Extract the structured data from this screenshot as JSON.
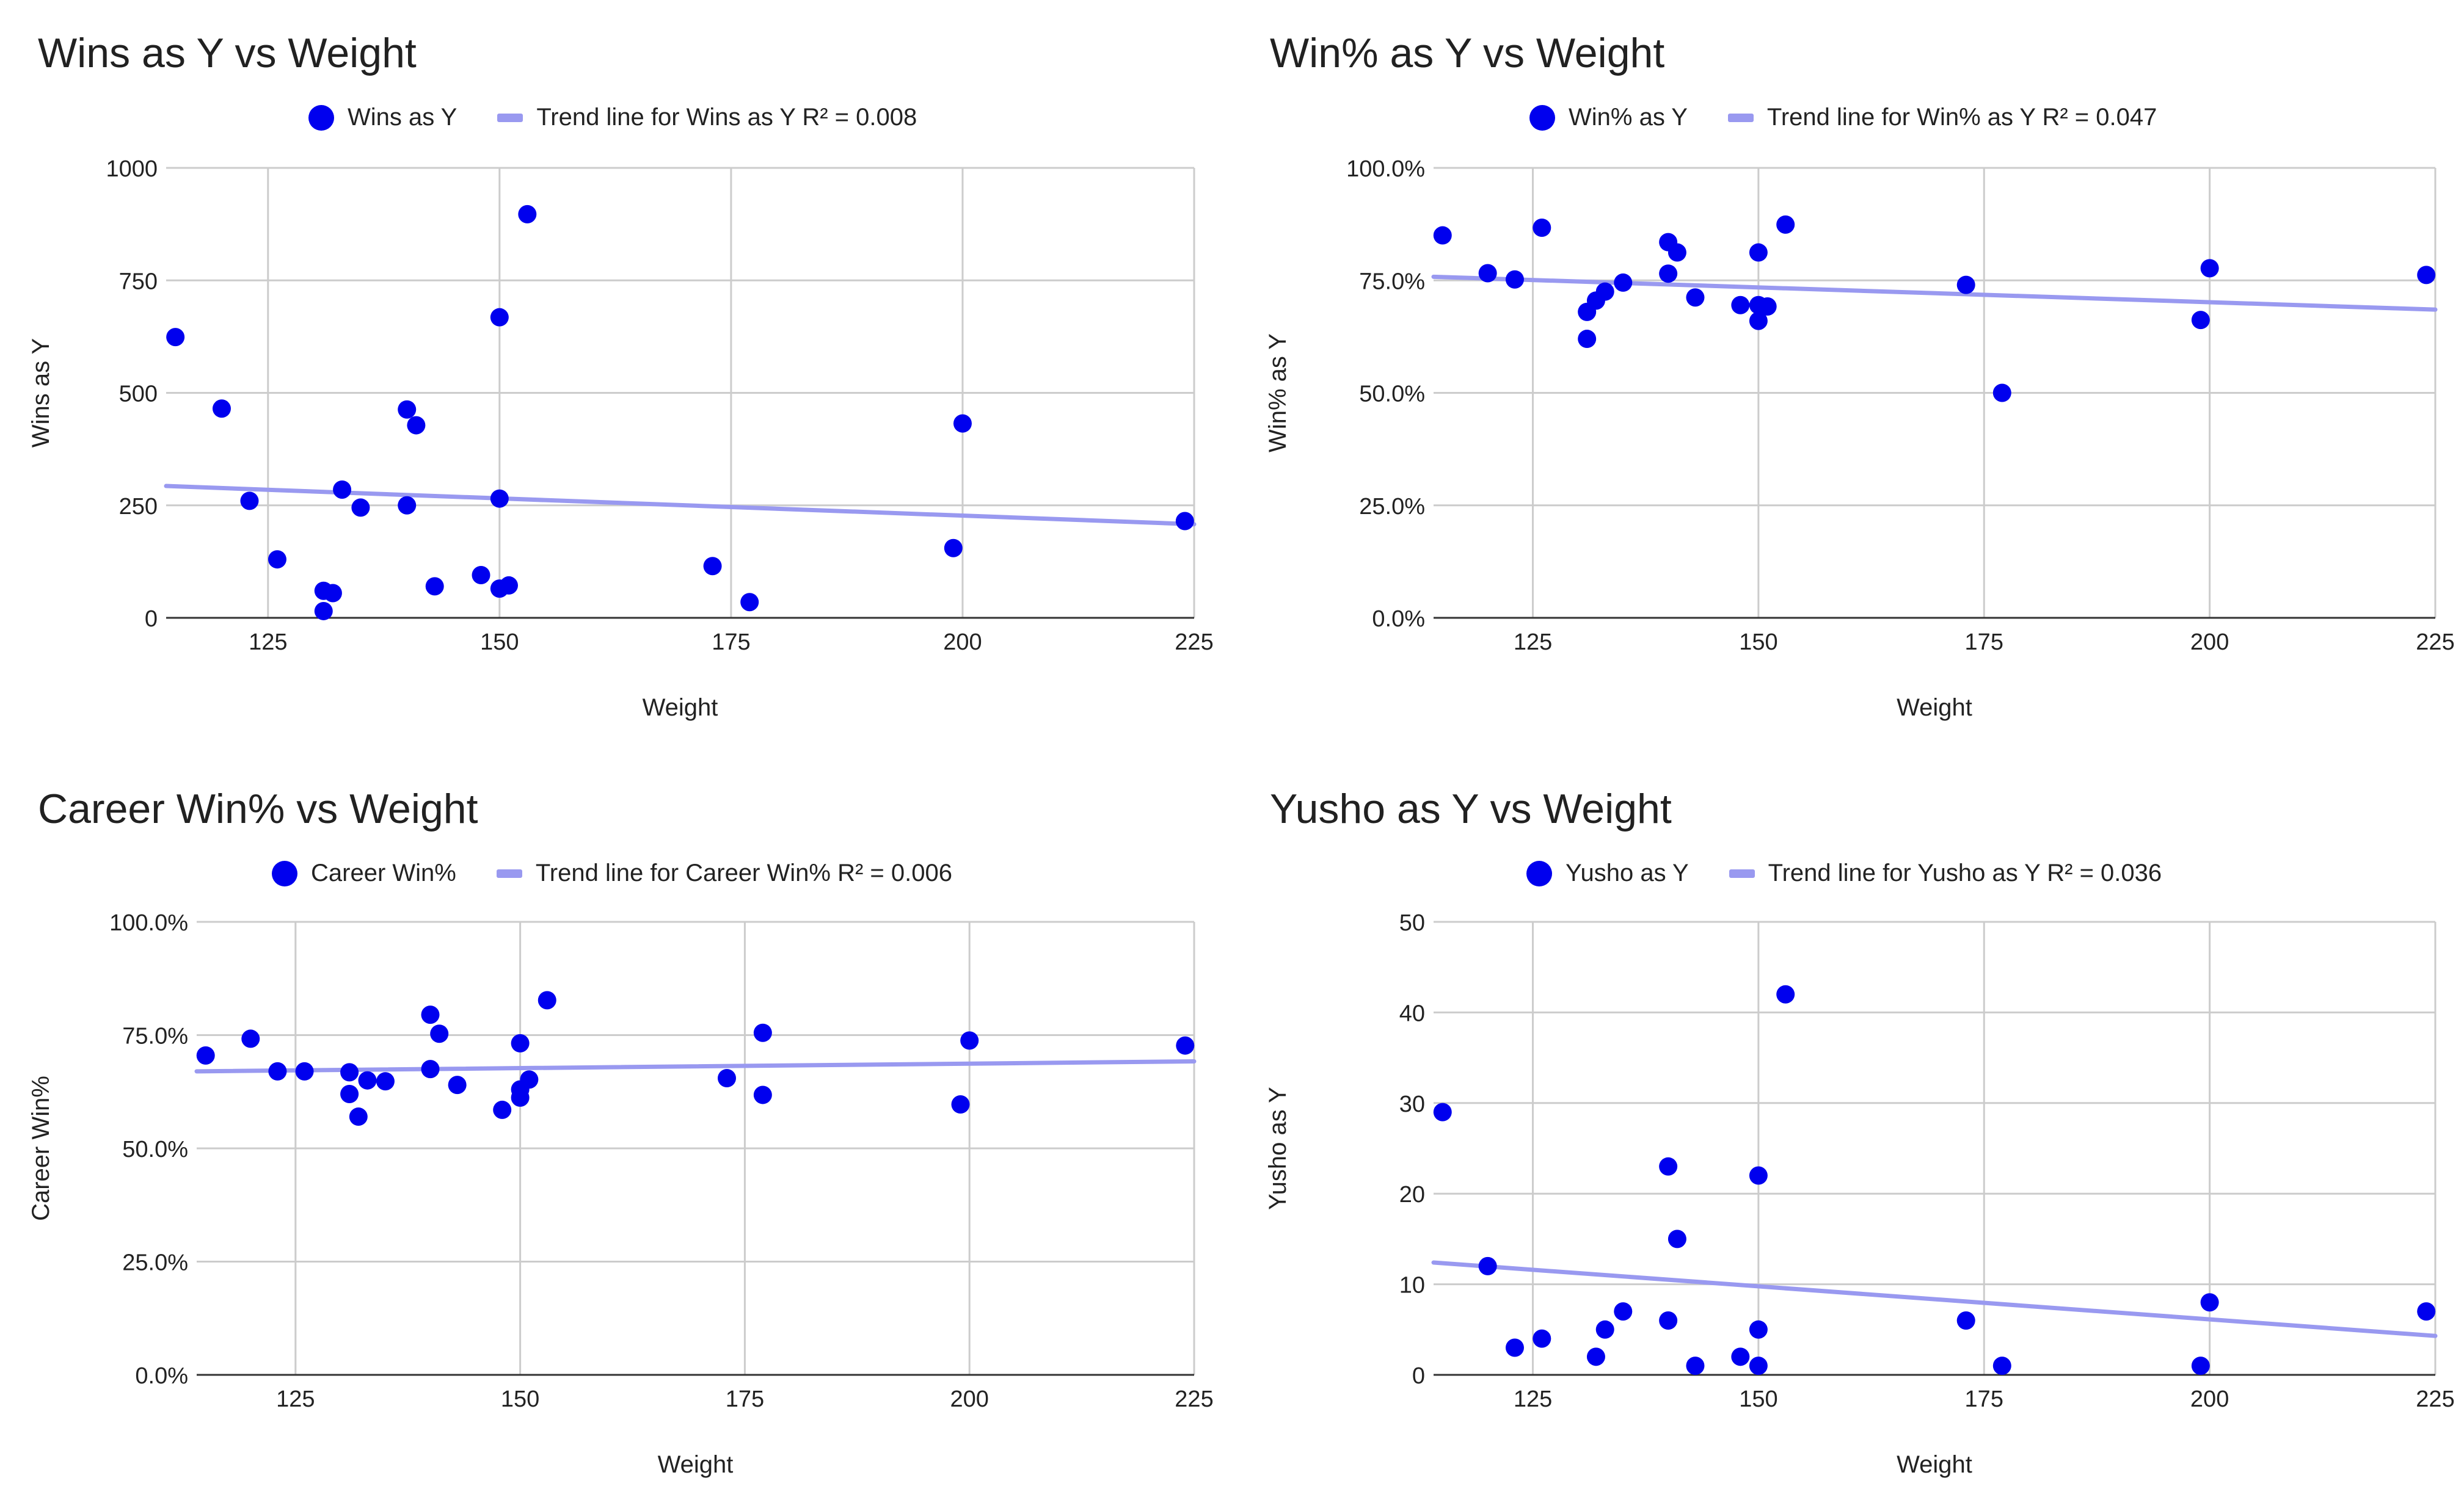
{
  "colors": {
    "points": "#0000ee",
    "trend": "#9999f0",
    "grid": "#cccccc",
    "axis": "#333333",
    "text": "#222222"
  },
  "chart_data": [
    {
      "type": "scatter",
      "title": "Wins as Y vs Weight",
      "xlabel": "Weight",
      "ylabel": "Wins as Y",
      "xlim": [
        114,
        225
      ],
      "ylim": [
        0,
        1000
      ],
      "xticks": [
        125,
        150,
        175,
        200,
        225
      ],
      "xtick_labels": [
        "125",
        "150",
        "175",
        "200",
        "225"
      ],
      "yticks": [
        0,
        250,
        500,
        750,
        1000
      ],
      "ytick_labels": [
        "0",
        "250",
        "500",
        "750",
        "1000"
      ],
      "grid": true,
      "legend_position": "top",
      "legend": {
        "points": "Wins as Y",
        "trend": "Trend line for Wins as Y R² = 0.008"
      },
      "series": [
        {
          "name": "Wins as Y",
          "points": [
            [
              115,
              624
            ],
            [
              120,
              465
            ],
            [
              123,
              260
            ],
            [
              126,
              130
            ],
            [
              131,
              60
            ],
            [
              131,
              15
            ],
            [
              132,
              55
            ],
            [
              133,
              285
            ],
            [
              135,
              245
            ],
            [
              140,
              250
            ],
            [
              140,
              463
            ],
            [
              141,
              428
            ],
            [
              143,
              70
            ],
            [
              148,
              95
            ],
            [
              150,
              668
            ],
            [
              150,
              265
            ],
            [
              150,
              65
            ],
            [
              151,
              72
            ],
            [
              153,
              897
            ],
            [
              173,
              115
            ],
            [
              177,
              35
            ],
            [
              199,
              155
            ],
            [
              200,
              432
            ],
            [
              224,
              215
            ]
          ]
        }
      ],
      "trend": [
        [
          114,
          293
        ],
        [
          225,
          208
        ]
      ]
    },
    {
      "type": "scatter",
      "title": "Win% as Y vs Weight",
      "xlabel": "Weight",
      "ylabel": "Win% as Y",
      "xlim": [
        114,
        225
      ],
      "ylim": [
        0,
        1
      ],
      "xticks": [
        125,
        150,
        175,
        200,
        225
      ],
      "xtick_labels": [
        "125",
        "150",
        "175",
        "200",
        "225"
      ],
      "yticks": [
        0,
        0.25,
        0.5,
        0.75,
        1
      ],
      "ytick_labels": [
        "0.0%",
        "25.0%",
        "50.0%",
        "75.0%",
        "100.0%"
      ],
      "grid": true,
      "legend_position": "top",
      "legend": {
        "points": "Win% as Y",
        "trend": "Trend line for Win% as Y R² = 0.047"
      },
      "series": [
        {
          "name": "Win% as Y",
          "points": [
            [
              115,
              0.85
            ],
            [
              120,
              0.766
            ],
            [
              123,
              0.752
            ],
            [
              126,
              0.867
            ],
            [
              131,
              0.68
            ],
            [
              131,
              0.62
            ],
            [
              132,
              0.705
            ],
            [
              133,
              0.725
            ],
            [
              135,
              0.745
            ],
            [
              140,
              0.765
            ],
            [
              140,
              0.835
            ],
            [
              141,
              0.812
            ],
            [
              143,
              0.712
            ],
            [
              148,
              0.695
            ],
            [
              150,
              0.812
            ],
            [
              150,
              0.695
            ],
            [
              150,
              0.66
            ],
            [
              151,
              0.692
            ],
            [
              153,
              0.874
            ],
            [
              173,
              0.74
            ],
            [
              177,
              0.5
            ],
            [
              199,
              0.662
            ],
            [
              200,
              0.777
            ],
            [
              224,
              0.762
            ]
          ]
        }
      ],
      "trend": [
        [
          114,
          0.758
        ],
        [
          225,
          0.685
        ]
      ]
    },
    {
      "type": "scatter",
      "title": "Career Win% vs Weight",
      "xlabel": "Weight",
      "ylabel": "Career Win%",
      "xlim": [
        114,
        225
      ],
      "ylim": [
        0,
        1
      ],
      "xticks": [
        125,
        150,
        175,
        200,
        225
      ],
      "xtick_labels": [
        "125",
        "150",
        "175",
        "200",
        "225"
      ],
      "yticks": [
        0,
        0.25,
        0.5,
        0.75,
        1
      ],
      "ytick_labels": [
        "0.0%",
        "25.0%",
        "50.0%",
        "75.0%",
        "100.0%"
      ],
      "grid": true,
      "legend_position": "top",
      "legend": {
        "points": "Career Win%",
        "trend": "Trend line for Career Win% R² = 0.006"
      },
      "series": [
        {
          "name": "Career Win%",
          "points": [
            [
              115,
              0.705
            ],
            [
              120,
              0.742
            ],
            [
              123,
              0.67
            ],
            [
              126,
              0.67
            ],
            [
              131,
              0.668
            ],
            [
              131,
              0.62
            ],
            [
              132,
              0.57
            ],
            [
              133,
              0.65
            ],
            [
              135,
              0.648
            ],
            [
              140,
              0.795
            ],
            [
              140,
              0.675
            ],
            [
              141,
              0.753
            ],
            [
              143,
              0.64
            ],
            [
              148,
              0.585
            ],
            [
              150,
              0.732
            ],
            [
              150,
              0.63
            ],
            [
              150,
              0.612
            ],
            [
              151,
              0.652
            ],
            [
              153,
              0.827
            ],
            [
              173,
              0.655
            ],
            [
              177,
              0.755
            ],
            [
              177,
              0.618
            ],
            [
              199,
              0.597
            ],
            [
              200,
              0.738
            ],
            [
              224,
              0.727
            ]
          ]
        }
      ],
      "trend": [
        [
          114,
          0.67
        ],
        [
          225,
          0.692
        ]
      ]
    },
    {
      "type": "scatter",
      "title": "Yusho as Y vs Weight",
      "xlabel": "Weight",
      "ylabel": "Yusho as Y",
      "xlim": [
        114,
        225
      ],
      "ylim": [
        0,
        50
      ],
      "xticks": [
        125,
        150,
        175,
        200,
        225
      ],
      "xtick_labels": [
        "125",
        "150",
        "175",
        "200",
        "225"
      ],
      "yticks": [
        0,
        10,
        20,
        30,
        40,
        50
      ],
      "ytick_labels": [
        "0",
        "10",
        "20",
        "30",
        "40",
        "50"
      ],
      "grid": true,
      "legend_position": "top",
      "legend": {
        "points": "Yusho as Y",
        "trend": "Trend line for Yusho as Y R² = 0.036"
      },
      "series": [
        {
          "name": "Yusho as Y",
          "points": [
            [
              115,
              29
            ],
            [
              120,
              12
            ],
            [
              123,
              3
            ],
            [
              126,
              4
            ],
            [
              132,
              2
            ],
            [
              133,
              5
            ],
            [
              135,
              7
            ],
            [
              140,
              6
            ],
            [
              140,
              23
            ],
            [
              141,
              15
            ],
            [
              143,
              1
            ],
            [
              148,
              2
            ],
            [
              150,
              22
            ],
            [
              150,
              5
            ],
            [
              150,
              1
            ],
            [
              153,
              42
            ],
            [
              173,
              6
            ],
            [
              177,
              1
            ],
            [
              199,
              1
            ],
            [
              200,
              8
            ],
            [
              224,
              7
            ]
          ]
        }
      ],
      "trend": [
        [
          114,
          12.4
        ],
        [
          225,
          4.3
        ]
      ]
    }
  ]
}
